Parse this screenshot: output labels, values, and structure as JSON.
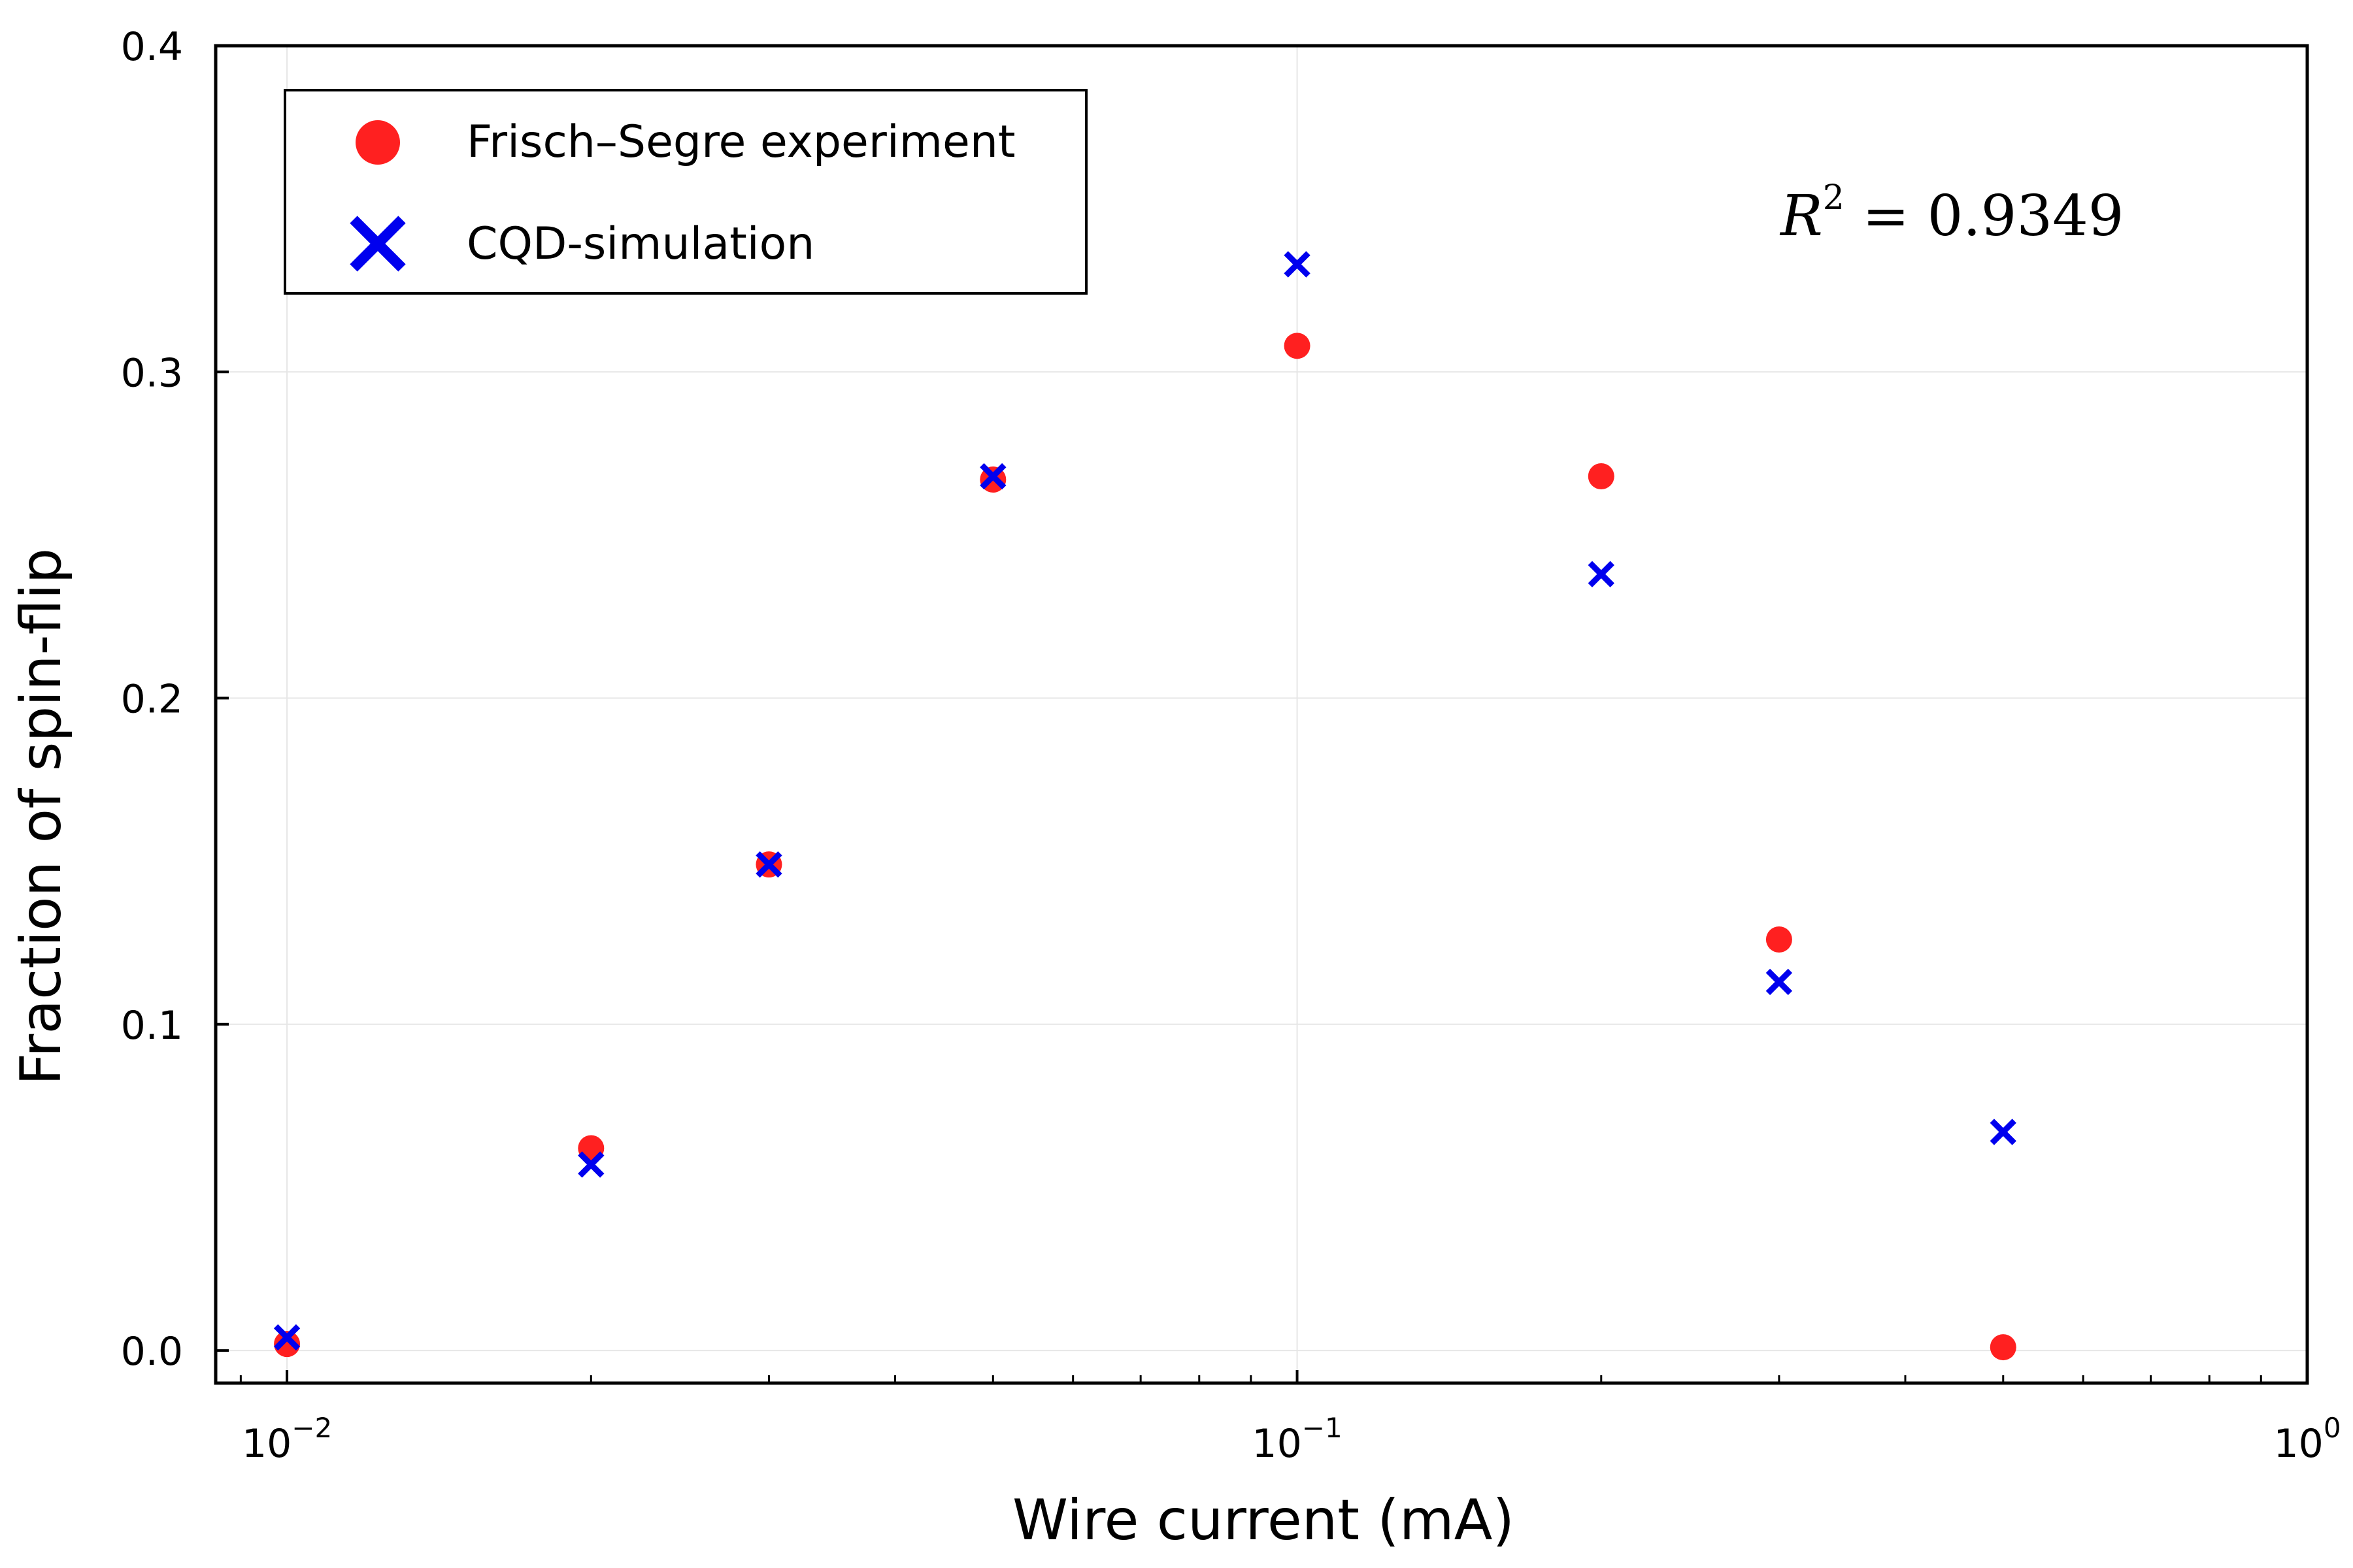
{
  "chart_data": {
    "type": "scatter",
    "xscale": "log",
    "xlabel": "Wire current (mA)",
    "ylabel": "Fraction of spin-flip",
    "xlim": [
      0.0085,
      1.0
    ],
    "ylim": [
      -0.01,
      0.4
    ],
    "grid": true,
    "legend_position": "top-left",
    "annotation": {
      "base": "R",
      "exponent": "2",
      "rest": " = 0.9349"
    },
    "x_ticks": [
      {
        "value": 0.01,
        "base": "10",
        "exp": "−2"
      },
      {
        "value": 0.1,
        "base": "10",
        "exp": "−1"
      },
      {
        "value": 1.0,
        "base": "10",
        "exp": "0"
      }
    ],
    "y_ticks": [
      {
        "value": 0.0,
        "label": "0.0"
      },
      {
        "value": 0.1,
        "label": "0.1"
      },
      {
        "value": 0.2,
        "label": "0.2"
      },
      {
        "value": 0.3,
        "label": "0.3"
      },
      {
        "value": 0.4,
        "label": "0.4"
      }
    ],
    "series": [
      {
        "name": "Frisch–Segre experiment",
        "marker": "circle",
        "color": "#ff2020",
        "x": [
          0.01,
          0.02,
          0.03,
          0.05,
          0.1,
          0.2,
          0.3,
          0.5
        ],
        "y": [
          0.002,
          0.062,
          0.149,
          0.267,
          0.308,
          0.268,
          0.126,
          0.001
        ]
      },
      {
        "name": "CQD-simulation",
        "marker": "x",
        "color": "#0000ee",
        "x": [
          0.01,
          0.02,
          0.03,
          0.05,
          0.1,
          0.2,
          0.3,
          0.5
        ],
        "y": [
          0.004,
          0.057,
          0.149,
          0.268,
          0.333,
          0.238,
          0.113,
          0.067
        ]
      }
    ]
  }
}
